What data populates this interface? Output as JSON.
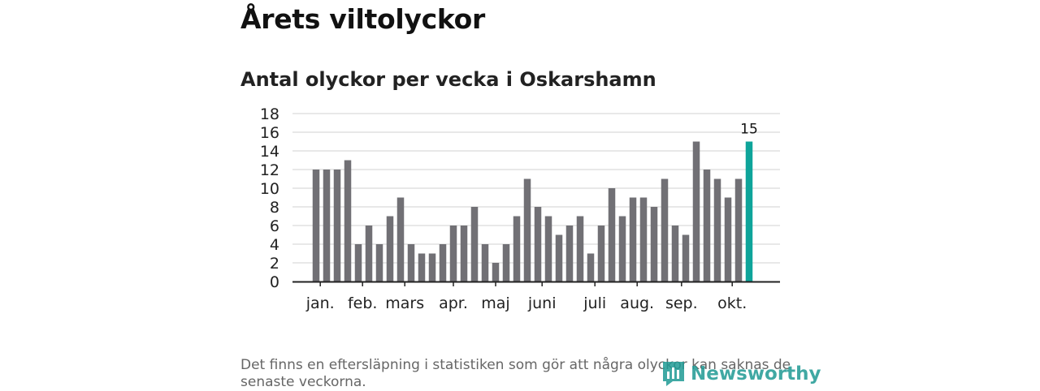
{
  "header": {
    "title": "Årets viltolyckor",
    "subtitle": "Antal olyckor per vecka i Oskarshamn"
  },
  "footer": {
    "note": "Det finns en eftersläpning i statistiken som gör att några olyckor kan saknas de senaste veckorna.",
    "brand": "Newsworthy"
  },
  "colors": {
    "bar": "#717075",
    "highlight": "#0ea49a",
    "grid": "#d9d9d9",
    "axis": "#222222"
  },
  "chart_data": {
    "type": "bar",
    "title": "Antal olyckor per vecka i Oskarshamn",
    "xlabel": "",
    "ylabel": "",
    "ylim": [
      0,
      18
    ],
    "yticks": [
      0,
      2,
      4,
      6,
      8,
      10,
      12,
      14,
      16,
      18
    ],
    "grid": true,
    "values": [
      12,
      12,
      12,
      13,
      4,
      6,
      4,
      7,
      9,
      4,
      3,
      3,
      4,
      6,
      6,
      8,
      4,
      2,
      4,
      7,
      11,
      8,
      7,
      5,
      6,
      7,
      3,
      6,
      10,
      7,
      9,
      9,
      8,
      11,
      6,
      5,
      15,
      12,
      11,
      9,
      11,
      15
    ],
    "highlight_index": 41,
    "highlight_label": "15",
    "month_labels": [
      {
        "label": "jan.",
        "week": 0.4
      },
      {
        "label": "feb.",
        "week": 4.4
      },
      {
        "label": "mars",
        "week": 8.4
      },
      {
        "label": "apr.",
        "week": 13.0
      },
      {
        "label": "maj",
        "week": 17.0
      },
      {
        "label": "juni",
        "week": 21.4
      },
      {
        "label": "juli",
        "week": 26.4
      },
      {
        "label": "aug.",
        "week": 30.4
      },
      {
        "label": "sep.",
        "week": 34.6
      },
      {
        "label": "okt.",
        "week": 39.4
      }
    ]
  }
}
